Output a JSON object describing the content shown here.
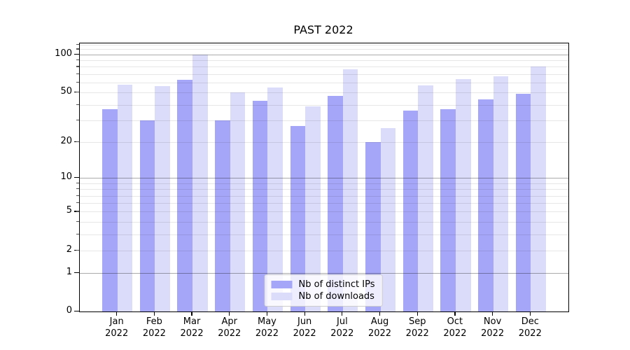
{
  "figure": {
    "background": "#ffffff"
  },
  "chart_data": {
    "type": "bar",
    "title": "PAST 2022",
    "categories": [
      "Jan",
      "Feb",
      "Mar",
      "Apr",
      "May",
      "Jun",
      "Jul",
      "Aug",
      "Sep",
      "Oct",
      "Nov",
      "Dec"
    ],
    "xtick_year": "2022",
    "series": [
      {
        "name": "Nb of distinct IPs",
        "color": "#a6a6f8",
        "values": [
          37,
          30,
          63,
          30,
          43,
          27,
          47,
          20,
          36,
          37,
          44,
          49
        ]
      },
      {
        "name": "Nb of downloads",
        "color": "#dbdbfa",
        "values": [
          58,
          56,
          100,
          50,
          55,
          39,
          77,
          26,
          57,
          64,
          67,
          81
        ]
      }
    ],
    "yscale": "log1p",
    "yticks": [
      0,
      1,
      2,
      5,
      10,
      20,
      50,
      100
    ],
    "ytick_labels": [
      "0",
      "1",
      "2",
      "5",
      "10",
      "20",
      "50",
      "100"
    ],
    "ylim": [
      0,
      122.4
    ],
    "grid": true,
    "grid_major_at": [
      1,
      10,
      100
    ],
    "grid_minor_at": [
      2,
      3,
      4,
      5,
      6,
      7,
      8,
      9,
      20,
      30,
      40,
      50,
      60,
      70,
      80,
      90,
      110,
      120
    ],
    "legend_position": "bottom-center",
    "xlabel": "",
    "ylabel": ""
  },
  "colors": {
    "bar_distinct_ips": "#a6a6f8",
    "bar_downloads": "#dbdbfa",
    "grid_major": "#ababab",
    "grid_minor": "#e7e7e7",
    "axis": "#000000",
    "legend_border": "#cccccc",
    "text": "#000000"
  }
}
